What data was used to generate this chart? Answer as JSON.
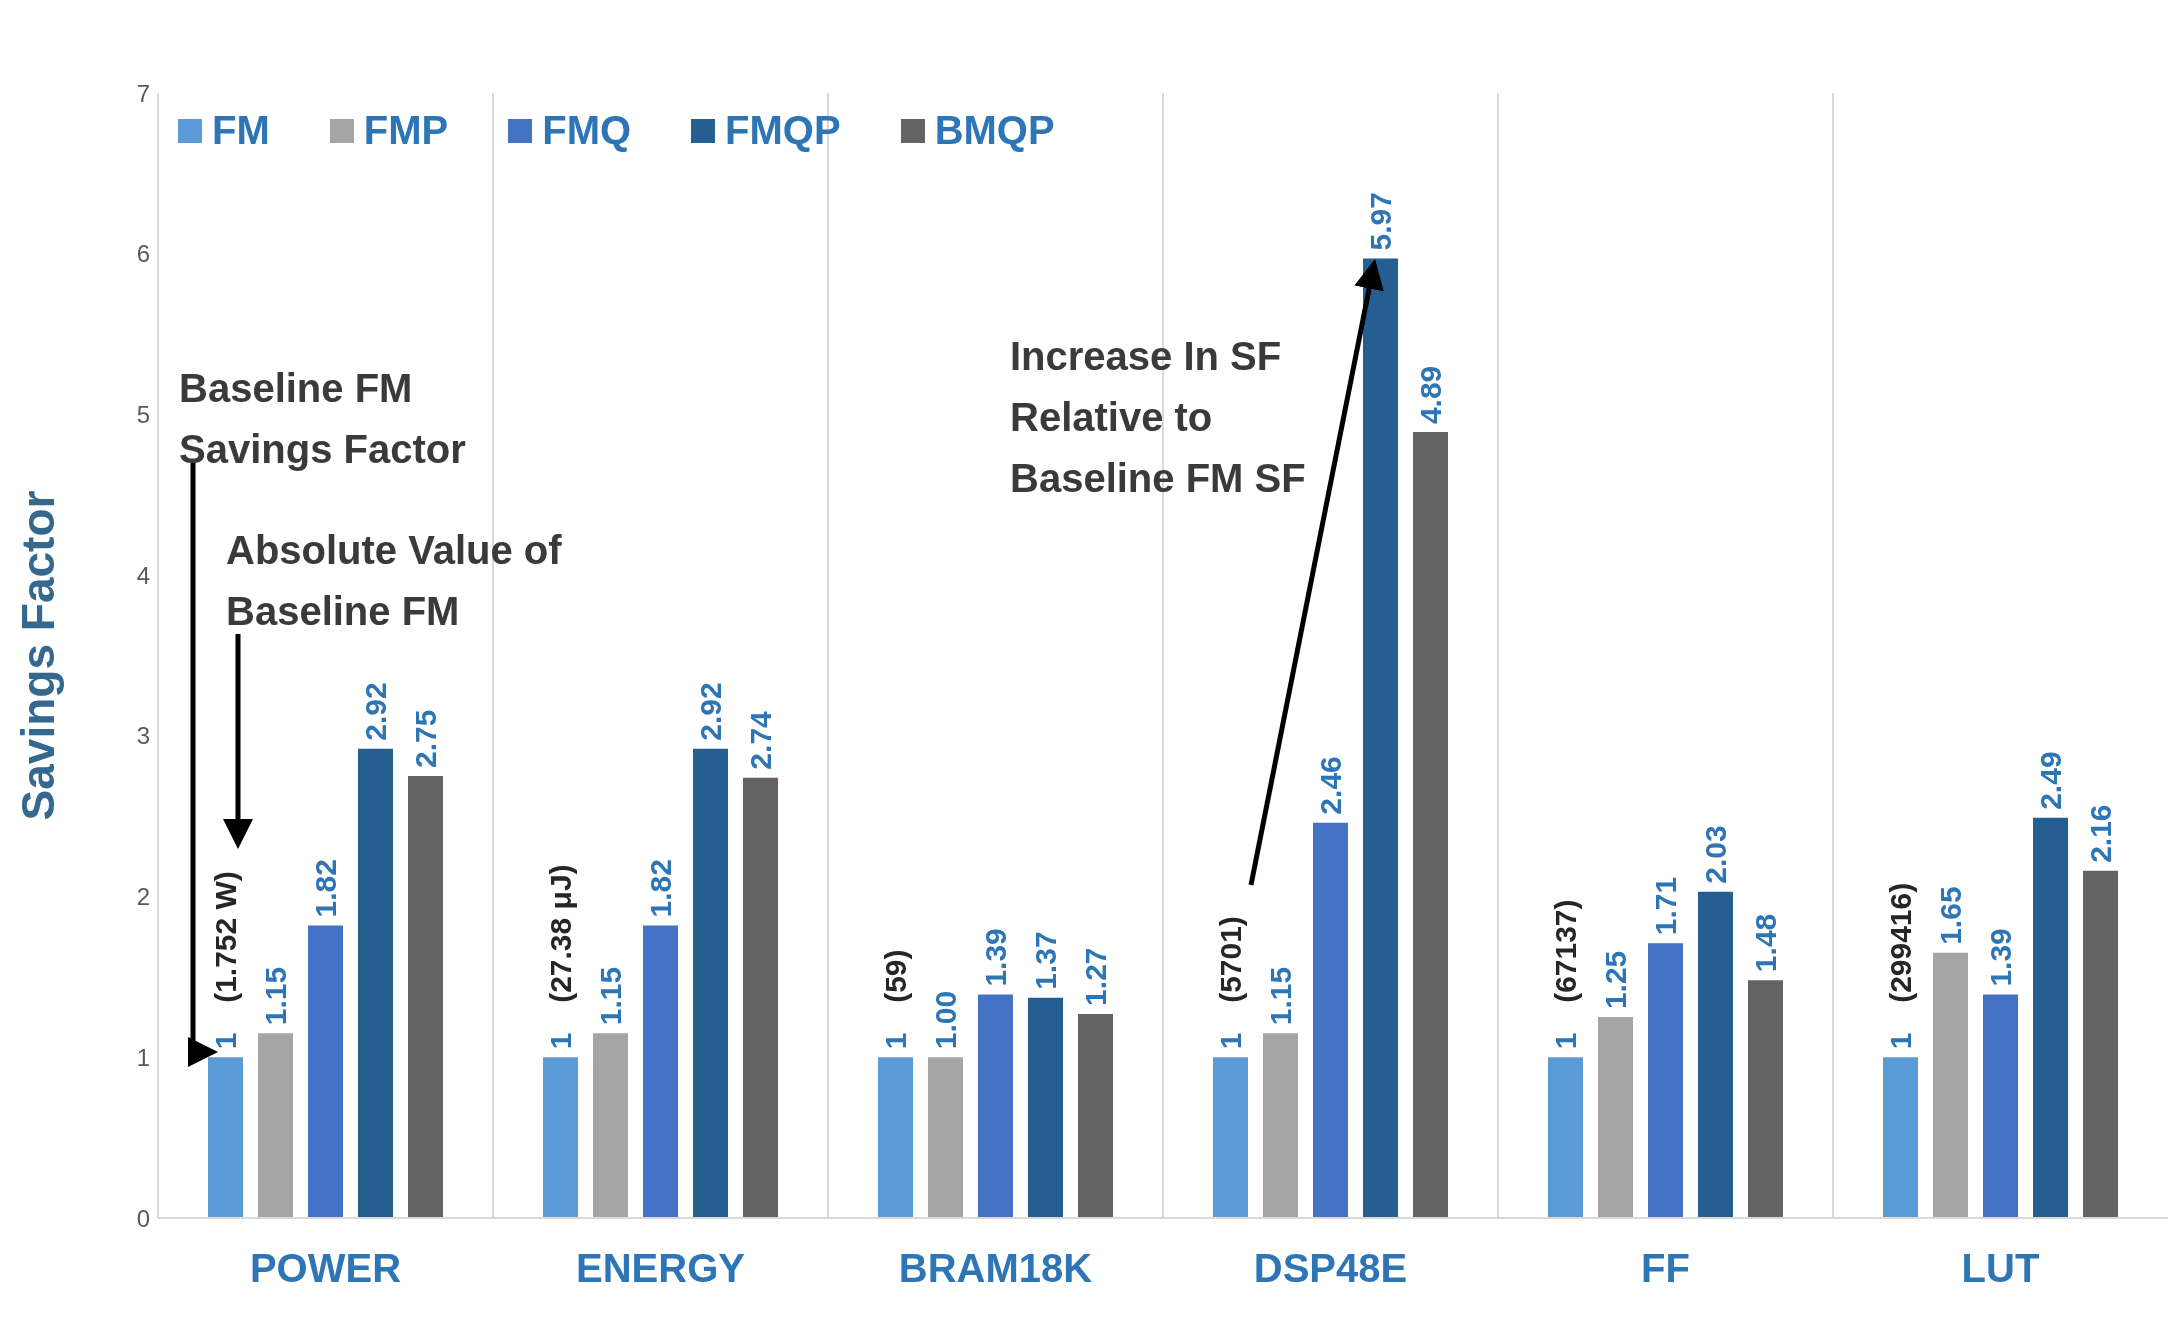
{
  "chart_data": {
    "type": "bar",
    "ylabel": "Savings Factor",
    "categories": [
      "POWER",
      "ENERGY",
      "BRAM18K",
      "DSP48E",
      "FF",
      "LUT"
    ],
    "series": [
      {
        "name": "FM",
        "color": "#5b9bd5",
        "values": [
          1,
          1,
          1,
          1,
          1,
          1
        ],
        "value_labels": [
          "1",
          "1",
          "1",
          "1",
          "1",
          "1"
        ]
      },
      {
        "name": "FMP",
        "color": "#a5a5a5",
        "values": [
          1.15,
          1.15,
          1.0,
          1.15,
          1.25,
          1.65
        ],
        "value_labels": [
          "1.15",
          "1.15",
          "1.00",
          "1.15",
          "1.25",
          "1.65"
        ]
      },
      {
        "name": "FMQ",
        "color": "#4472c4",
        "values": [
          1.82,
          1.82,
          1.39,
          2.46,
          1.71,
          1.39
        ],
        "value_labels": [
          "1.82",
          "1.82",
          "1.39",
          "2.46",
          "1.71",
          "1.39"
        ]
      },
      {
        "name": "FMQP",
        "color": "#255e91",
        "values": [
          2.92,
          2.92,
          1.37,
          5.97,
          2.03,
          2.49
        ],
        "value_labels": [
          "2.92",
          "2.92",
          "1.37",
          "5.97",
          "2.03",
          "2.49"
        ]
      },
      {
        "name": "BMQP",
        "color": "#636363",
        "values": [
          2.75,
          2.74,
          1.27,
          4.89,
          1.48,
          2.16
        ],
        "value_labels": [
          "2.75",
          "2.74",
          "1.27",
          "4.89",
          "1.48",
          "2.16"
        ]
      }
    ],
    "ylim": [
      0,
      7
    ],
    "yticks": [
      0,
      1,
      2,
      3,
      4,
      5,
      6,
      7
    ],
    "grid": "x",
    "legend": "top left",
    "annotations": [
      "(1.752 W)",
      "(27.38 μJ)",
      "(59)",
      "(5701)",
      "(67137)",
      "(299416)",
      "Baseline FM Savings Factor",
      "Absolute Value of Baseline FM",
      "Increase In SF Relative to Baseline FM SF"
    ]
  }
}
